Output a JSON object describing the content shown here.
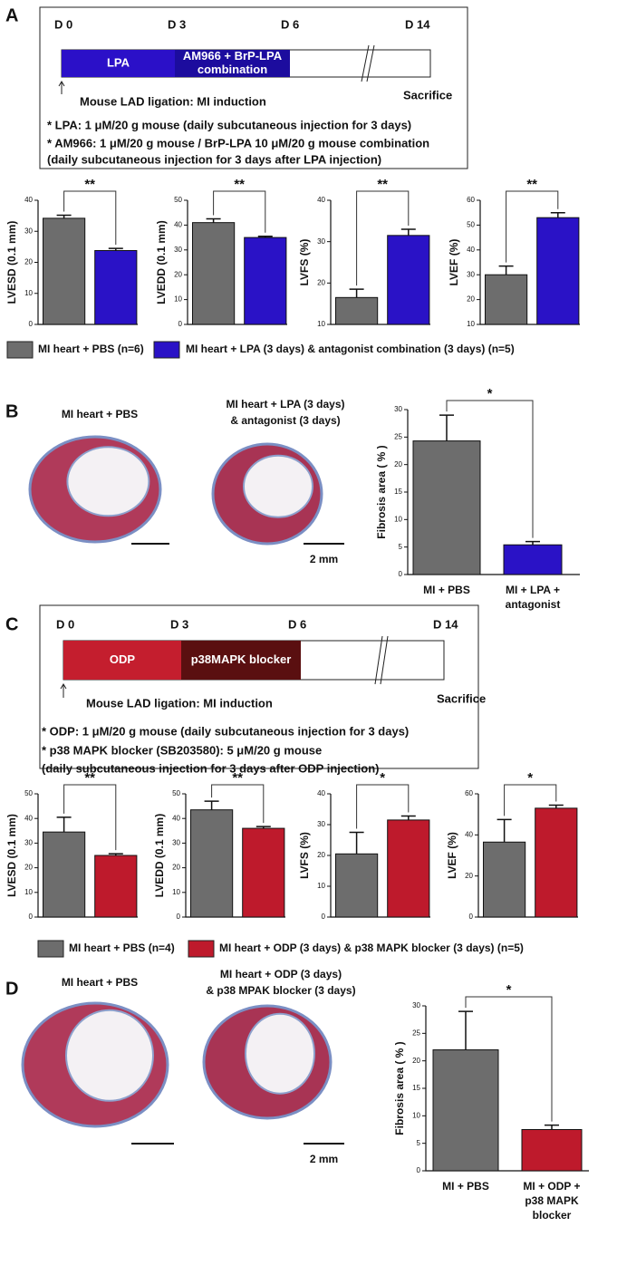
{
  "chart_data": [
    {
      "type": "bar",
      "ylabel": "LVESD (0.1 mm)",
      "values": [
        34.2,
        23.8
      ],
      "errors": [
        1.0,
        0.7
      ],
      "colors": [
        "#6d6d6d",
        "#2a12c6"
      ],
      "ylim": [
        0,
        40
      ],
      "yticks": [
        0,
        10,
        20,
        30,
        40
      ],
      "significance": "**"
    },
    {
      "type": "bar",
      "ylabel": "LVEDD (0.1 mm)",
      "values": [
        41,
        35
      ],
      "errors": [
        1.5,
        0.5
      ],
      "colors": [
        "#6d6d6d",
        "#2a12c6"
      ],
      "ylim": [
        0,
        50
      ],
      "yticks": [
        0,
        10,
        20,
        30,
        40,
        50
      ],
      "significance": "**"
    },
    {
      "type": "bar",
      "ylabel": "LVFS (%)",
      "values": [
        16.5,
        31.5
      ],
      "errors": [
        2.0,
        1.5
      ],
      "colors": [
        "#6d6d6d",
        "#2a12c6"
      ],
      "ylim": [
        10,
        40
      ],
      "yticks": [
        10,
        20,
        30,
        40
      ],
      "significance": "**"
    },
    {
      "type": "bar",
      "ylabel": "LVEF (%)",
      "values": [
        30,
        53
      ],
      "errors": [
        3.5,
        2.0
      ],
      "colors": [
        "#6d6d6d",
        "#2a12c6"
      ],
      "ylim": [
        10,
        60
      ],
      "yticks": [
        10,
        20,
        30,
        40,
        50,
        60
      ],
      "significance": "**"
    },
    {
      "type": "bar",
      "ylabel": "Fibrosis area ( % )",
      "categories": [
        [
          "MI + PBS"
        ],
        [
          "MI + LPA +",
          "antagonist"
        ]
      ],
      "values": [
        24.3,
        5.4
      ],
      "errors": [
        4.7,
        0.6
      ],
      "colors": [
        "#6d6d6d",
        "#2a12c6"
      ],
      "ylim": [
        0,
        30
      ],
      "yticks": [
        0,
        5,
        10,
        15,
        20,
        25,
        30
      ],
      "significance": "*"
    },
    {
      "type": "bar",
      "ylabel": "LVESD (0.1 mm)",
      "values": [
        34.5,
        25
      ],
      "errors": [
        6.0,
        0.7
      ],
      "colors": [
        "#6d6d6d",
        "#be1a2c"
      ],
      "ylim": [
        0,
        50
      ],
      "yticks": [
        0,
        10,
        20,
        30,
        40,
        50
      ],
      "significance": "**"
    },
    {
      "type": "bar",
      "ylabel": "LVEDD (0.1 mm)",
      "values": [
        43.5,
        36
      ],
      "errors": [
        3.5,
        0.7
      ],
      "colors": [
        "#6d6d6d",
        "#be1a2c"
      ],
      "ylim": [
        0,
        50
      ],
      "yticks": [
        0,
        10,
        20,
        30,
        40,
        50
      ],
      "significance": "**"
    },
    {
      "type": "bar",
      "ylabel": "LVFS (%)",
      "values": [
        20.5,
        31.5
      ],
      "errors": [
        7.0,
        1.3
      ],
      "colors": [
        "#6d6d6d",
        "#be1a2c"
      ],
      "ylim": [
        0,
        40
      ],
      "yticks": [
        0,
        10,
        20,
        30,
        40
      ],
      "significance": "*"
    },
    {
      "type": "bar",
      "ylabel": "LVEF (%)",
      "values": [
        36.5,
        53
      ],
      "errors": [
        11.0,
        1.5
      ],
      "colors": [
        "#6d6d6d",
        "#be1a2c"
      ],
      "ylim": [
        0,
        60
      ],
      "yticks": [
        0,
        20,
        40,
        60
      ],
      "significance": "*"
    },
    {
      "type": "bar",
      "ylabel": "Fibrosis area ( % )",
      "categories": [
        [
          "MI + PBS"
        ],
        [
          "MI + ODP +",
          "p38 MAPK",
          "blocker"
        ]
      ],
      "values": [
        22,
        7.5
      ],
      "errors": [
        7.0,
        0.8
      ],
      "colors": [
        "#6d6d6d",
        "#be1a2c"
      ],
      "ylim": [
        0,
        30
      ],
      "yticks": [
        0,
        5,
        10,
        15,
        20,
        25,
        30
      ],
      "significance": "*"
    }
  ],
  "panels": {
    "A": {
      "letter": "A",
      "timeline": {
        "days": [
          "D 0",
          "D 3",
          "D 6",
          "D 14"
        ],
        "segments": [
          [
            "LPA"
          ],
          [
            "AM966 + BrP-LPA",
            "combination"
          ]
        ],
        "segment_colors": [
          "#2b10c8",
          "#1c0c9e"
        ],
        "start": "Mouse LAD ligation: MI induction",
        "end": "Sacrifice"
      },
      "notes": [
        "* LPA: 1 μM/20 g mouse (daily subcutaneous injection for 3 days)",
        "* AM966: 1 μM/20 g mouse / BrP-LPA 10 μM/20 g mouse combination",
        "  (daily subcutaneous injection for 3 days after LPA injection)"
      ],
      "legend": [
        "MI heart + PBS (n=6)",
        "MI heart + LPA (3 days) & antagonist combination (3 days) (n=5)"
      ]
    },
    "B": {
      "letter": "B",
      "captions": [
        [
          "MI heart + PBS"
        ],
        [
          "MI heart + LPA (3 days)",
          "& antagonist (3 days)"
        ]
      ],
      "scale": "2 mm"
    },
    "C": {
      "letter": "C",
      "timeline": {
        "days": [
          "D 0",
          "D 3",
          "D 6",
          "D 14"
        ],
        "segments": [
          [
            "ODP"
          ],
          [
            "p38MAPK blocker"
          ]
        ],
        "segment_colors": [
          "#c41e2e",
          "#5a0f10"
        ],
        "start": "Mouse LAD ligation: MI induction",
        "end": "Sacrifice"
      },
      "notes": [
        "* ODP: 1 μM/20 g mouse (daily subcutaneous injection for 3 days)",
        "* p38 MAPK blocker (SB203580): 5 μM/20 g mouse",
        "  (daily subcutaneous injection for 3 days after ODP injection)"
      ],
      "legend": [
        "MI heart + PBS (n=4)",
        "MI heart + ODP (3 days) & p38 MAPK blocker (3 days) (n=5)"
      ]
    },
    "D": {
      "letter": "D",
      "captions": [
        [
          "MI heart + PBS"
        ],
        [
          "MI heart + ODP (3 days)",
          "& p38 MPAK blocker (3 days)"
        ]
      ],
      "scale": "2 mm"
    }
  }
}
